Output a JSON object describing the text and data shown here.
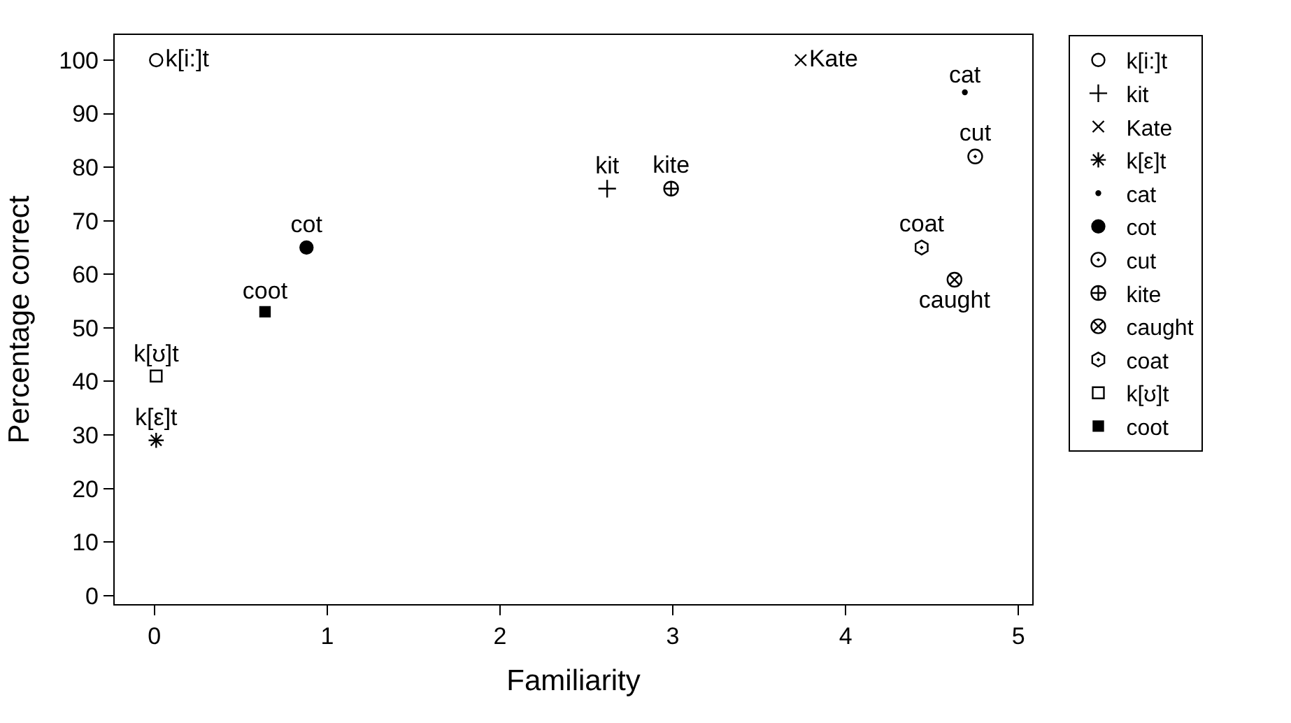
{
  "chart_data": {
    "type": "scatter",
    "xlabel": "Familiarity",
    "ylabel": "Percentage correct",
    "xlim": [
      -0.23,
      5.08
    ],
    "ylim": [
      -1.6,
      104.7
    ],
    "xticks": [
      0,
      1,
      2,
      3,
      4,
      5
    ],
    "yticks": [
      0,
      10,
      20,
      30,
      40,
      50,
      60,
      70,
      80,
      90,
      100
    ],
    "legend": "right",
    "series": [
      {
        "name": "k[i:]t",
        "color": "#000000",
        "marker": "circle",
        "x": [
          0.01
        ],
        "values": [
          100
        ]
      },
      {
        "name": "kit",
        "color": "#000000",
        "marker": "cross",
        "x": [
          2.62
        ],
        "values": [
          76
        ]
      },
      {
        "name": "Kate",
        "color": "#000000",
        "marker": "cross",
        "x": [
          3.74
        ],
        "values": [
          100
        ]
      },
      {
        "name": "k[ε]t",
        "color": "#000000",
        "marker": "cross",
        "x": [
          0.01
        ],
        "values": [
          29
        ]
      },
      {
        "name": "cat",
        "color": "#000000",
        "marker": "circle",
        "x": [
          4.69
        ],
        "values": [
          94
        ]
      },
      {
        "name": "cot",
        "color": "#000000",
        "marker": "circle",
        "x": [
          0.88
        ],
        "values": [
          65
        ]
      },
      {
        "name": "cut",
        "color": "#000000",
        "marker": "circle",
        "x": [
          4.75
        ],
        "values": [
          82
        ]
      },
      {
        "name": "kite",
        "color": "#000000",
        "marker": "cross",
        "x": [
          2.99
        ],
        "values": [
          76
        ]
      },
      {
        "name": "caught",
        "color": "#000000",
        "marker": "cross",
        "x": [
          4.63
        ],
        "values": [
          59
        ]
      },
      {
        "name": "coat",
        "color": "#000000",
        "marker": "star",
        "x": [
          4.44
        ],
        "values": [
          65
        ]
      },
      {
        "name": "k[ʊ]t",
        "color": "#000000",
        "marker": "square",
        "x": [
          0.01
        ],
        "values": [
          41
        ]
      },
      {
        "name": "coot",
        "color": "#000000",
        "marker": "square",
        "x": [
          0.64
        ],
        "values": [
          53
        ]
      }
    ]
  }
}
